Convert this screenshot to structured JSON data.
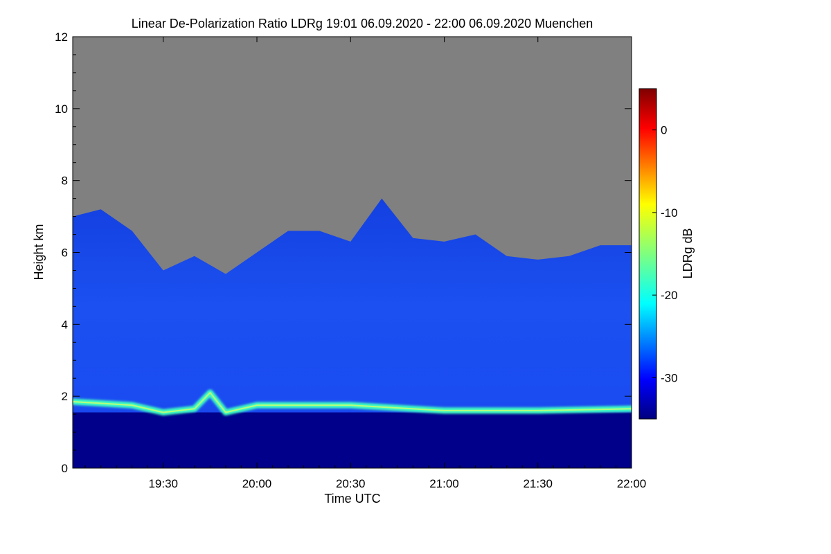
{
  "chart_data": {
    "type": "heatmap",
    "title": "Linear De-Polarization Ratio LDRg   19:01 06.09.2020 - 22:00 06.09.2020 Muenchen",
    "xlabel": "Time UTC",
    "ylabel": "Height km",
    "xlim": [
      "19:01",
      "22:00"
    ],
    "ylim": [
      0,
      12
    ],
    "x_ticks": [
      "19:30",
      "20:00",
      "20:30",
      "21:00",
      "21:30",
      "22:00"
    ],
    "y_ticks": [
      0,
      2,
      4,
      6,
      8,
      10,
      12
    ],
    "colorbar": {
      "label": "LDRg dB",
      "range": [
        -35,
        5
      ],
      "ticks": [
        0,
        -10,
        -20,
        -30
      ]
    },
    "colors": {
      "no_signal": "#808080",
      "low": "#00008a",
      "mid": "#1a55ff",
      "layer": "#40ffbf",
      "high": "#a00000"
    },
    "cloud_top_km": [
      {
        "t": "19:01",
        "h": 7.0
      },
      {
        "t": "19:10",
        "h": 7.2
      },
      {
        "t": "19:20",
        "h": 6.6
      },
      {
        "t": "19:30",
        "h": 5.5
      },
      {
        "t": "19:40",
        "h": 5.9
      },
      {
        "t": "19:50",
        "h": 5.4
      },
      {
        "t": "20:00",
        "h": 6.0
      },
      {
        "t": "20:10",
        "h": 6.6
      },
      {
        "t": "20:20",
        "h": 6.6
      },
      {
        "t": "20:30",
        "h": 6.3
      },
      {
        "t": "20:40",
        "h": 7.5
      },
      {
        "t": "20:50",
        "h": 6.4
      },
      {
        "t": "21:00",
        "h": 6.3
      },
      {
        "t": "21:10",
        "h": 6.5
      },
      {
        "t": "21:20",
        "h": 5.9
      },
      {
        "t": "21:30",
        "h": 5.8
      },
      {
        "t": "21:40",
        "h": 5.9
      },
      {
        "t": "21:50",
        "h": 6.2
      },
      {
        "t": "22:00",
        "h": 6.2
      }
    ],
    "boundary_layer_km": [
      {
        "t": "19:01",
        "h": 1.85
      },
      {
        "t": "19:20",
        "h": 1.75
      },
      {
        "t": "19:30",
        "h": 1.55
      },
      {
        "t": "19:40",
        "h": 1.65
      },
      {
        "t": "19:45",
        "h": 2.1
      },
      {
        "t": "19:50",
        "h": 1.55
      },
      {
        "t": "20:00",
        "h": 1.75
      },
      {
        "t": "20:30",
        "h": 1.75
      },
      {
        "t": "21:00",
        "h": 1.6
      },
      {
        "t": "21:30",
        "h": 1.6
      },
      {
        "t": "22:00",
        "h": 1.65
      }
    ]
  }
}
